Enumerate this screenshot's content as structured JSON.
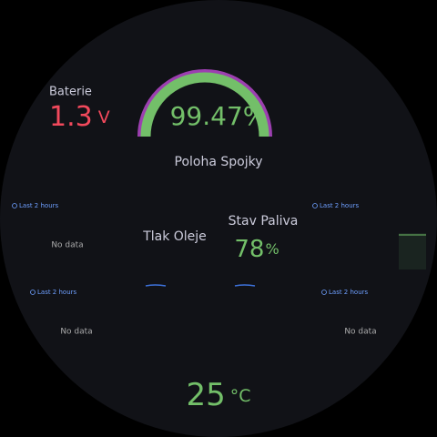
{
  "battery": {
    "title": "Baterie",
    "value": "1.3",
    "unit": "V"
  },
  "clutch": {
    "value": "99.47%",
    "title": "Poloha Spojky"
  },
  "oil": {
    "title": "Tlak Oleje"
  },
  "fuel": {
    "title": "Stav Paliva",
    "value": "78",
    "unit": "%"
  },
  "temperature": {
    "value": "25",
    "unit": "°C"
  },
  "time_ranges": [
    "Last 2 hours",
    "Last 2 hours",
    "Last 2 hours",
    "Last 2 hours"
  ],
  "no_data": [
    "No data",
    "No data",
    "No data"
  ]
}
